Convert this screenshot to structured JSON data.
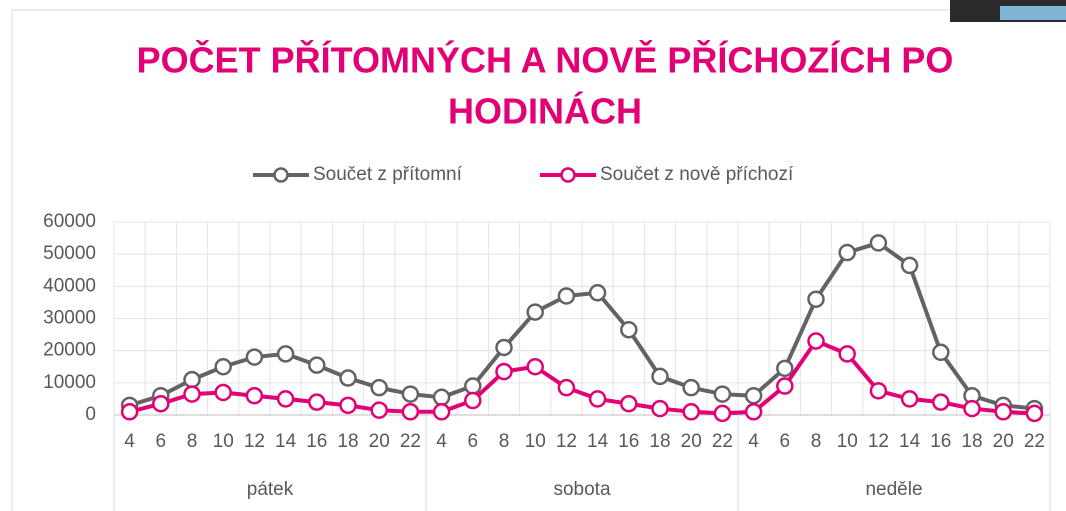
{
  "chart_data": {
    "type": "line",
    "title": [
      "POČET PŘÍTOMNÝCH A NOVĚ PŘÍCHOZÍCH PO",
      "HODINÁCH"
    ],
    "categories": [
      "4",
      "6",
      "8",
      "10",
      "12",
      "14",
      "16",
      "18",
      "20",
      "22",
      "4",
      "6",
      "8",
      "10",
      "12",
      "14",
      "16",
      "18",
      "20",
      "22",
      "4",
      "6",
      "8",
      "10",
      "12",
      "14",
      "16",
      "18",
      "20",
      "22"
    ],
    "groups": [
      {
        "name": "pátek",
        "size": 10
      },
      {
        "name": "sobota",
        "size": 10
      },
      {
        "name": "neděle",
        "size": 10
      }
    ],
    "series": [
      {
        "name": "Součet z přítomní",
        "color": "#636363",
        "values": [
          3000,
          6000,
          11000,
          15000,
          18000,
          19000,
          15500,
          11500,
          8500,
          6500,
          5500,
          9000,
          21000,
          32000,
          37000,
          38000,
          26500,
          12000,
          8500,
          6500,
          6000,
          14500,
          36000,
          50500,
          53500,
          46500,
          19500,
          6000,
          3000,
          2000
        ]
      },
      {
        "name": "Součet z nově příchozí",
        "color": "#e20074",
        "values": [
          1000,
          3500,
          6500,
          7000,
          6000,
          5000,
          4000,
          3000,
          1500,
          1000,
          1000,
          4500,
          13500,
          15000,
          8500,
          5000,
          3500,
          2000,
          1000,
          500,
          1000,
          9000,
          23000,
          19000,
          7500,
          5000,
          4000,
          2000,
          1000,
          500
        ]
      }
    ],
    "ylim": [
      0,
      60000
    ],
    "yticks": [
      0,
      10000,
      20000,
      30000,
      40000,
      50000,
      60000
    ],
    "grid": true,
    "legend": "top"
  }
}
